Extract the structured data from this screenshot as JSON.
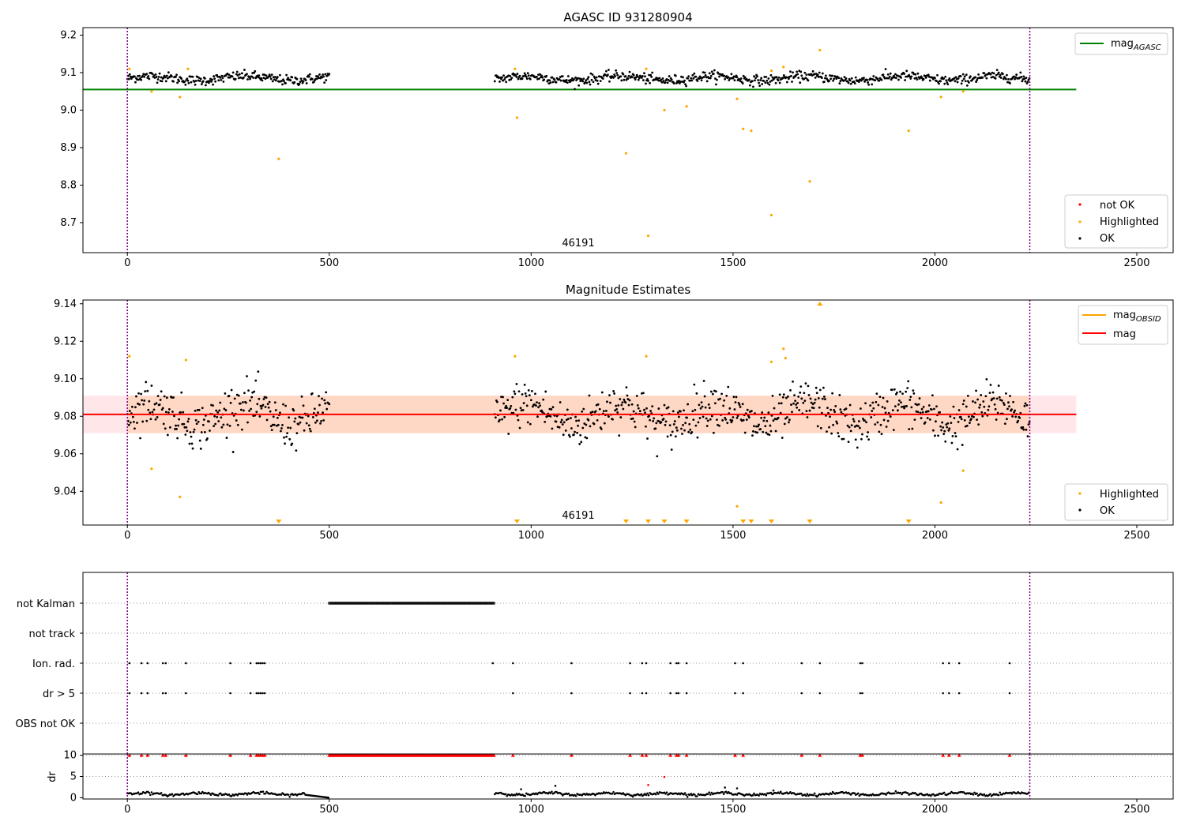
{
  "colors": {
    "ok": "#000000",
    "highlighted": "#ffa500",
    "not_ok": "#ff0000",
    "mag_agasc": "#008000",
    "mag_obsid": "#ffa500",
    "mag": "#ff0000",
    "band_fill": "#ffb6c1",
    "band_fill_2": "#ffdab9",
    "obsid_boundary": "#800080",
    "grid": "#999999"
  },
  "chart_data": [
    {
      "type": "scatter",
      "title": "AGASC ID 931280904",
      "xlabel": "",
      "ylabel": "",
      "xlim": [
        -110,
        2590
      ],
      "ylim": [
        8.62,
        9.22
      ],
      "x_ticks": [
        0,
        500,
        1000,
        1500,
        2000,
        2500
      ],
      "y_ticks": [
        8.7,
        8.8,
        8.9,
        9.0,
        9.1,
        9.2
      ],
      "y_tick_labels": [
        "8.7",
        "8.8",
        "8.9",
        "9.0",
        "9.1",
        "9.2"
      ],
      "obsid_label": "46191",
      "obsid_boundaries": [
        0,
        2235
      ],
      "reference_line": {
        "name": "mag_AGASC",
        "label_main": "mag",
        "label_sub": "AGASC",
        "value": 9.055,
        "x_range": [
          0,
          2350
        ]
      },
      "legend_lines": {
        "position": "top-right",
        "entries": [
          {
            "main": "mag",
            "sub": "AGASC"
          }
        ]
      },
      "legend_points": {
        "position": "bottom-right",
        "entries": [
          "not OK",
          "Highlighted",
          "OK"
        ]
      },
      "ok_segments": [
        {
          "x_start": 0,
          "x_end": 500,
          "mean": 9.085,
          "spread": 0.012,
          "step": 2
        },
        {
          "x_start": 910,
          "x_end": 2235,
          "mean": 9.085,
          "spread": 0.012,
          "step": 2
        }
      ],
      "highlighted": [
        [
          5,
          9.11
        ],
        [
          60,
          9.05
        ],
        [
          130,
          9.035
        ],
        [
          150,
          9.11
        ],
        [
          375,
          8.87
        ],
        [
          965,
          8.98
        ],
        [
          960,
          9.11
        ],
        [
          1235,
          8.885
        ],
        [
          1285,
          9.11
        ],
        [
          1290,
          8.665
        ],
        [
          1330,
          9.0
        ],
        [
          1385,
          9.01
        ],
        [
          1510,
          9.03
        ],
        [
          1525,
          8.95
        ],
        [
          1545,
          8.945
        ],
        [
          1595,
          9.105
        ],
        [
          1595,
          8.72
        ],
        [
          1625,
          9.115
        ],
        [
          1690,
          8.81
        ],
        [
          1715,
          9.16
        ],
        [
          1935,
          8.945
        ],
        [
          2015,
          9.035
        ],
        [
          2070,
          9.05
        ]
      ]
    },
    {
      "type": "scatter",
      "title": "Magnitude Estimates",
      "xlabel": "",
      "ylabel": "",
      "xlim": [
        -110,
        2590
      ],
      "ylim": [
        9.022,
        9.142
      ],
      "x_ticks": [
        0,
        500,
        1000,
        1500,
        2000,
        2500
      ],
      "y_ticks": [
        9.04,
        9.06,
        9.08,
        9.1,
        9.12,
        9.14
      ],
      "y_tick_labels": [
        "9.04",
        "9.06",
        "9.08",
        "9.10",
        "9.12",
        "9.14"
      ],
      "obsid_label": "46191",
      "obsid_boundaries": [
        0,
        2235
      ],
      "mag_line": {
        "name": "mag",
        "value": 9.081,
        "band": [
          9.071,
          9.091
        ],
        "x_range": [
          -110,
          2350
        ]
      },
      "mag_obsid_band": {
        "name": "mag_OBSID",
        "value": 9.081,
        "band": [
          9.071,
          9.091
        ],
        "x_range": [
          0,
          2235
        ]
      },
      "legend_lines": {
        "position": "top-right",
        "entries": [
          {
            "main": "mag",
            "sub": "OBSID"
          },
          {
            "main": "mag",
            "sub": ""
          }
        ]
      },
      "legend_points": {
        "position": "bottom-right",
        "entries": [
          "Highlighted",
          "OK"
        ]
      },
      "ok_segments": [
        {
          "x_start": 0,
          "x_end": 500,
          "mean": 9.081,
          "spread": 0.011,
          "step": 2
        },
        {
          "x_start": 910,
          "x_end": 2235,
          "mean": 9.081,
          "spread": 0.011,
          "step": 2
        }
      ],
      "highlighted": [
        [
          5,
          9.112
        ],
        [
          60,
          9.052
        ],
        [
          130,
          9.037
        ],
        [
          145,
          9.11
        ],
        [
          960,
          9.112
        ],
        [
          1285,
          9.112
        ],
        [
          1510,
          9.032
        ],
        [
          1595,
          9.109
        ],
        [
          1625,
          9.116
        ],
        [
          1630,
          9.111
        ],
        [
          2015,
          9.034
        ],
        [
          2070,
          9.051
        ]
      ],
      "below_range_markers": [
        375,
        965,
        1235,
        1290,
        1330,
        1385,
        1525,
        1545,
        1595,
        1690,
        1935
      ],
      "above_range_markers": [
        1715
      ]
    },
    {
      "type": "scatter",
      "title": "",
      "xlim": [
        -110,
        2590
      ],
      "x_ticks": [
        0,
        500,
        1000,
        1500,
        2000,
        2500
      ],
      "obsid_boundaries": [
        0,
        2235
      ],
      "flag_rows": [
        "not Kalman",
        "not track",
        "Ion. rad.",
        "dr > 5",
        "OBS not OK"
      ],
      "not_kalman_range": [
        500,
        910
      ],
      "ion_rad_x": [
        5,
        35,
        50,
        88,
        95,
        145,
        255,
        305,
        320,
        325,
        330,
        335,
        340,
        905,
        955,
        1100,
        1245,
        1275,
        1285,
        1345,
        1360,
        1365,
        1385,
        1505,
        1525,
        1670,
        1715,
        1815,
        1820,
        2020,
        2035,
        2060,
        2185
      ],
      "dr_gt5_x": [
        5,
        35,
        50,
        88,
        95,
        145,
        255,
        305,
        320,
        325,
        330,
        335,
        340,
        955,
        1100,
        1245,
        1275,
        1285,
        1345,
        1360,
        1365,
        1385,
        1505,
        1525,
        1670,
        1715,
        1815,
        1820,
        2020,
        2035,
        2060,
        2185
      ],
      "dr_panel": {
        "ylabel": "dr",
        "ylim": [
          -0.3,
          10.3
        ],
        "y_ticks": [
          0,
          5,
          10
        ],
        "y_tick_labels": [
          "0",
          "5",
          "10"
        ],
        "clip_value": 10,
        "baseline_segments": [
          {
            "x_start": 0,
            "x_end": 500,
            "mean": 0.9,
            "spread": 0.3,
            "step": 3
          },
          {
            "x_start": 910,
            "x_end": 2235,
            "mean": 0.9,
            "spread": 0.3,
            "step": 3
          }
        ],
        "ramp_down": [
          [
            440,
            0.6
          ],
          [
            470,
            0.3
          ],
          [
            500,
            0.0
          ]
        ],
        "scattered": [
          [
            975,
            2.0
          ],
          [
            1060,
            2.8
          ],
          [
            1290,
            3.0
          ],
          [
            1330,
            4.9
          ],
          [
            1480,
            2.4
          ],
          [
            1510,
            2.2
          ],
          [
            1600,
            1.7
          ]
        ],
        "not_kalman_red_range": [
          500,
          910
        ]
      }
    }
  ]
}
